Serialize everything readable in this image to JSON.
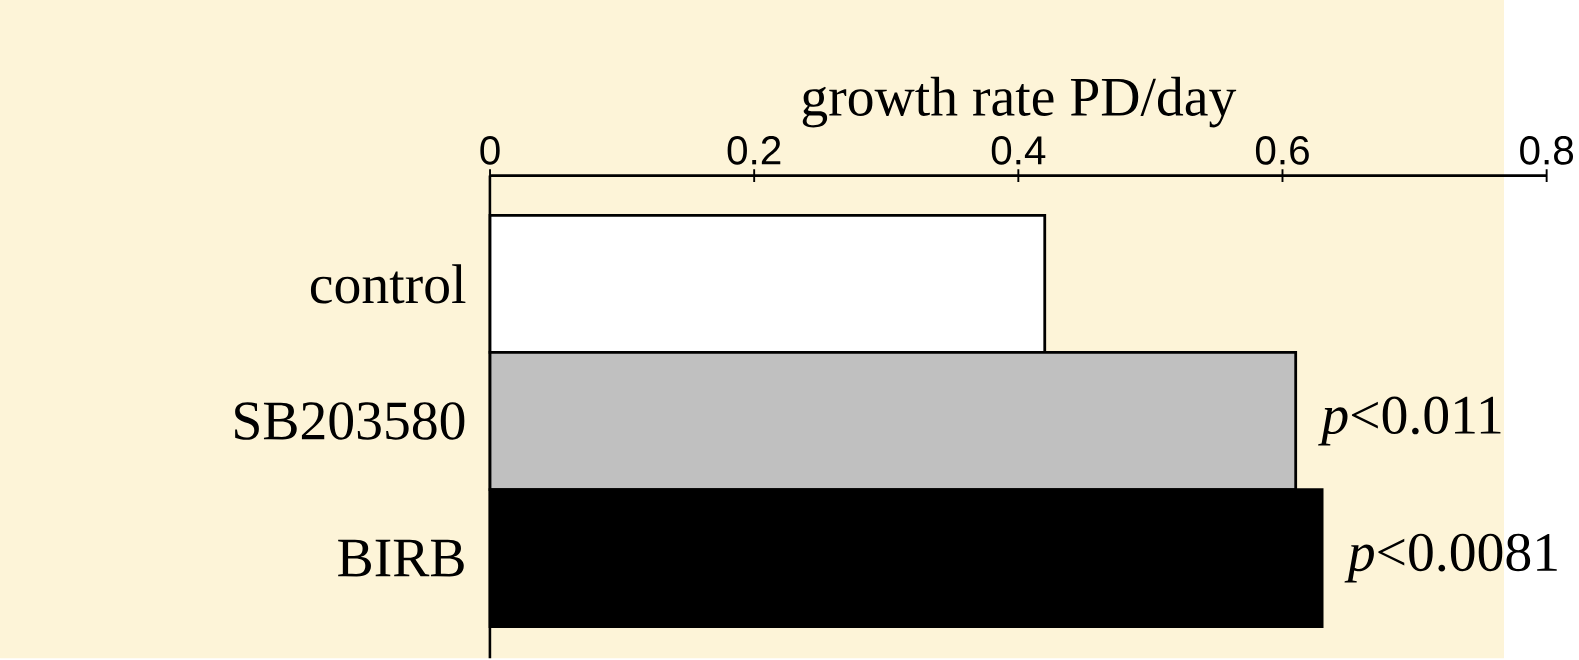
{
  "chart_data": {
    "type": "bar",
    "orientation": "horizontal",
    "xlabel": "growth rate PD/day",
    "categories": [
      "control",
      "SB203580",
      "BIRB"
    ],
    "values": [
      0.42,
      0.61,
      0.63
    ],
    "colors": [
      "#ffffff",
      "#c0c0c0",
      "#000000"
    ],
    "xlim": [
      0,
      0.8
    ],
    "xticks": [
      0,
      0.2,
      0.4,
      0.6,
      0.8
    ],
    "annotations": [
      {
        "text": "*p*<0.011",
        "x": 0.61,
        "y": "SB203580"
      },
      {
        "text": "*p*<0.0081",
        "x": 0.63,
        "y": "BIRB"
      }
    ]
  }
}
